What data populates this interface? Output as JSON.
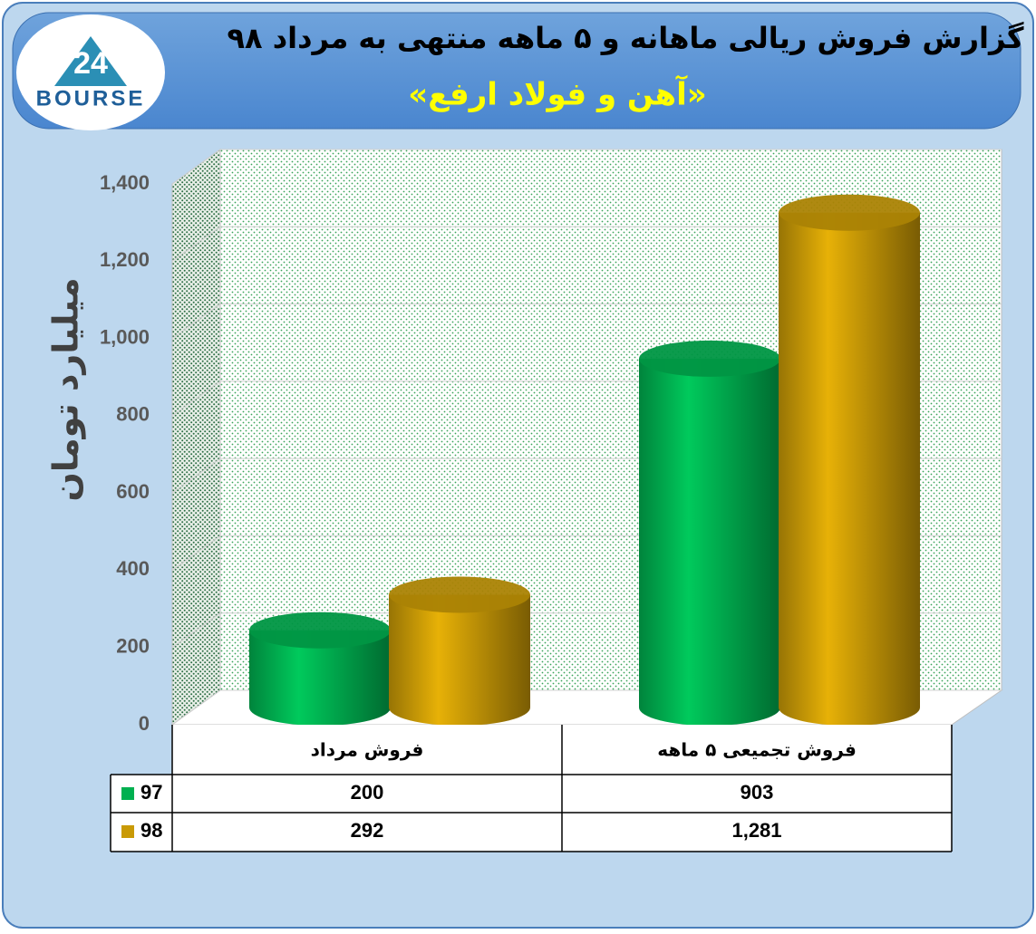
{
  "chart_data": {
    "type": "bar",
    "title": "گزارش فروش ریالی ماهانه و ۵ ماهه منتهی به مرداد ۹۸",
    "subtitle": "«آهن و فولاد ارفع»",
    "logo": {
      "number": "24",
      "name": "BOURSE"
    },
    "y_label": "میلیارد تومان",
    "categories": [
      "فروش مرداد",
      "فروش تجمیعی ۵ ماهه"
    ],
    "series": [
      {
        "name": "97",
        "color": "#00b050",
        "values": [
          200,
          903
        ]
      },
      {
        "name": "98",
        "color": "#c99a06",
        "values": [
          292,
          1281
        ],
        "value_labels": [
          "292",
          "1,281"
        ]
      }
    ],
    "ylim": [
      0,
      1400
    ],
    "yticks": [
      0,
      200,
      400,
      600,
      800,
      {
        "value": 1000,
        "label": "1,000"
      },
      {
        "value": 1200,
        "label": "1,200"
      },
      {
        "value": 1400,
        "label": "1,400"
      }
    ],
    "grid": true
  }
}
